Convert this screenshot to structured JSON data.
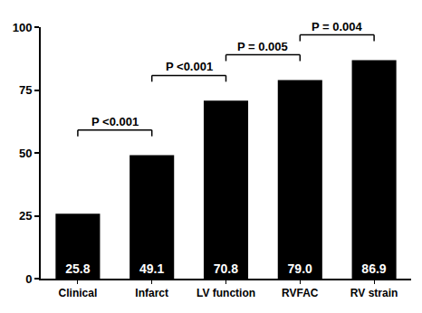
{
  "chart_data": {
    "type": "bar",
    "categories": [
      "Clinical",
      "Infarct",
      "LV function",
      "RVFAC",
      "RV strain"
    ],
    "values": [
      25.8,
      49.1,
      70.8,
      79.0,
      86.9
    ],
    "value_labels": [
      "25.8",
      "49.1",
      "70.8",
      "79.0",
      "86.9"
    ],
    "data_labels": true,
    "color": "#000000",
    "ylim": [
      0,
      100
    ],
    "yticks": [
      0,
      25,
      50,
      75,
      100
    ],
    "grid": false,
    "annotations": [
      {
        "from": "Clinical",
        "to": "Infarct",
        "text": "P <0.001"
      },
      {
        "from": "Infarct",
        "to": "LV function",
        "text": "P <0.001"
      },
      {
        "from": "LV function",
        "to": "RVFAC",
        "text": "P = 0.005"
      },
      {
        "from": "RVFAC",
        "to": "RV strain",
        "text": "P = 0.004"
      }
    ]
  }
}
